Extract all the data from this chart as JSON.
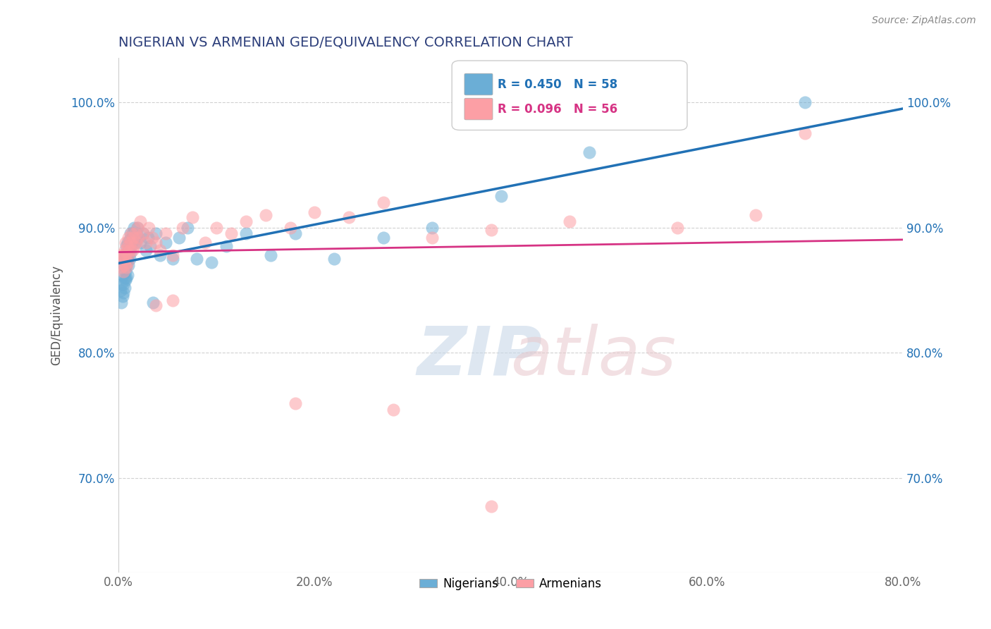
{
  "title": "NIGERIAN VS ARMENIAN GED/EQUIVALENCY CORRELATION CHART",
  "source": "Source: ZipAtlas.com",
  "ylabel": "GED/Equivalency",
  "xlim": [
    0.0,
    0.8
  ],
  "ylim": [
    0.625,
    1.035
  ],
  "xtick_labels": [
    "0.0%",
    "",
    "20.0%",
    "",
    "40.0%",
    "",
    "60.0%",
    "",
    "80.0%"
  ],
  "xtick_vals": [
    0.0,
    0.1,
    0.2,
    0.3,
    0.4,
    0.5,
    0.6,
    0.7,
    0.8
  ],
  "xtick_major_labels": [
    "0.0%",
    "20.0%",
    "40.0%",
    "60.0%",
    "80.0%"
  ],
  "xtick_major_vals": [
    0.0,
    0.2,
    0.4,
    0.6,
    0.8
  ],
  "ytick_labels": [
    "70.0%",
    "80.0%",
    "90.0%",
    "100.0%"
  ],
  "ytick_vals": [
    0.7,
    0.8,
    0.9,
    1.0
  ],
  "legend_blue_label": "Nigerians",
  "legend_pink_label": "Armenians",
  "R_blue": "R = 0.450",
  "N_blue": "N = 58",
  "R_pink": "R = 0.096",
  "N_pink": "N = 56",
  "blue_color": "#6baed6",
  "pink_color": "#fc9fa5",
  "blue_line_color": "#2171b5",
  "pink_line_color": "#d63384",
  "title_color": "#2c3e7a",
  "blue_scatter_x": [
    0.002,
    0.003,
    0.003,
    0.004,
    0.004,
    0.005,
    0.005,
    0.005,
    0.006,
    0.006,
    0.006,
    0.007,
    0.007,
    0.007,
    0.008,
    0.008,
    0.008,
    0.009,
    0.009,
    0.009,
    0.01,
    0.01,
    0.011,
    0.011,
    0.012,
    0.012,
    0.013,
    0.014,
    0.015,
    0.016,
    0.017,
    0.018,
    0.019,
    0.02,
    0.022,
    0.025,
    0.028,
    0.03,
    0.032,
    0.035,
    0.038,
    0.042,
    0.048,
    0.055,
    0.062,
    0.07,
    0.08,
    0.095,
    0.11,
    0.13,
    0.155,
    0.18,
    0.22,
    0.27,
    0.32,
    0.39,
    0.48,
    0.7
  ],
  "blue_scatter_y": [
    0.85,
    0.855,
    0.84,
    0.862,
    0.845,
    0.855,
    0.848,
    0.87,
    0.852,
    0.86,
    0.875,
    0.858,
    0.865,
    0.878,
    0.86,
    0.87,
    0.885,
    0.862,
    0.875,
    0.888,
    0.87,
    0.882,
    0.875,
    0.89,
    0.88,
    0.895,
    0.885,
    0.895,
    0.89,
    0.9,
    0.888,
    0.895,
    0.9,
    0.892,
    0.888,
    0.895,
    0.882,
    0.892,
    0.885,
    0.84,
    0.895,
    0.878,
    0.888,
    0.875,
    0.892,
    0.9,
    0.875,
    0.872,
    0.885,
    0.895,
    0.878,
    0.895,
    0.875,
    0.892,
    0.9,
    0.925,
    0.96,
    1.0
  ],
  "pink_scatter_x": [
    0.002,
    0.003,
    0.004,
    0.005,
    0.005,
    0.006,
    0.006,
    0.007,
    0.007,
    0.008,
    0.008,
    0.009,
    0.009,
    0.01,
    0.01,
    0.011,
    0.012,
    0.013,
    0.014,
    0.015,
    0.016,
    0.017,
    0.018,
    0.019,
    0.02,
    0.022,
    0.025,
    0.028,
    0.031,
    0.034,
    0.038,
    0.042,
    0.048,
    0.055,
    0.065,
    0.075,
    0.088,
    0.1,
    0.115,
    0.13,
    0.15,
    0.175,
    0.2,
    0.235,
    0.27,
    0.32,
    0.38,
    0.46,
    0.57,
    0.7,
    0.038,
    0.055,
    0.18,
    0.28,
    0.38,
    0.65
  ],
  "pink_scatter_y": [
    0.878,
    0.868,
    0.875,
    0.865,
    0.878,
    0.87,
    0.882,
    0.875,
    0.888,
    0.868,
    0.88,
    0.872,
    0.885,
    0.878,
    0.892,
    0.882,
    0.888,
    0.895,
    0.882,
    0.892,
    0.885,
    0.895,
    0.888,
    0.9,
    0.892,
    0.905,
    0.895,
    0.888,
    0.9,
    0.892,
    0.888,
    0.882,
    0.895,
    0.878,
    0.9,
    0.908,
    0.888,
    0.9,
    0.895,
    0.905,
    0.91,
    0.9,
    0.912,
    0.908,
    0.92,
    0.892,
    0.898,
    0.905,
    0.9,
    0.975,
    0.838,
    0.842,
    0.76,
    0.755,
    0.678,
    0.91
  ]
}
